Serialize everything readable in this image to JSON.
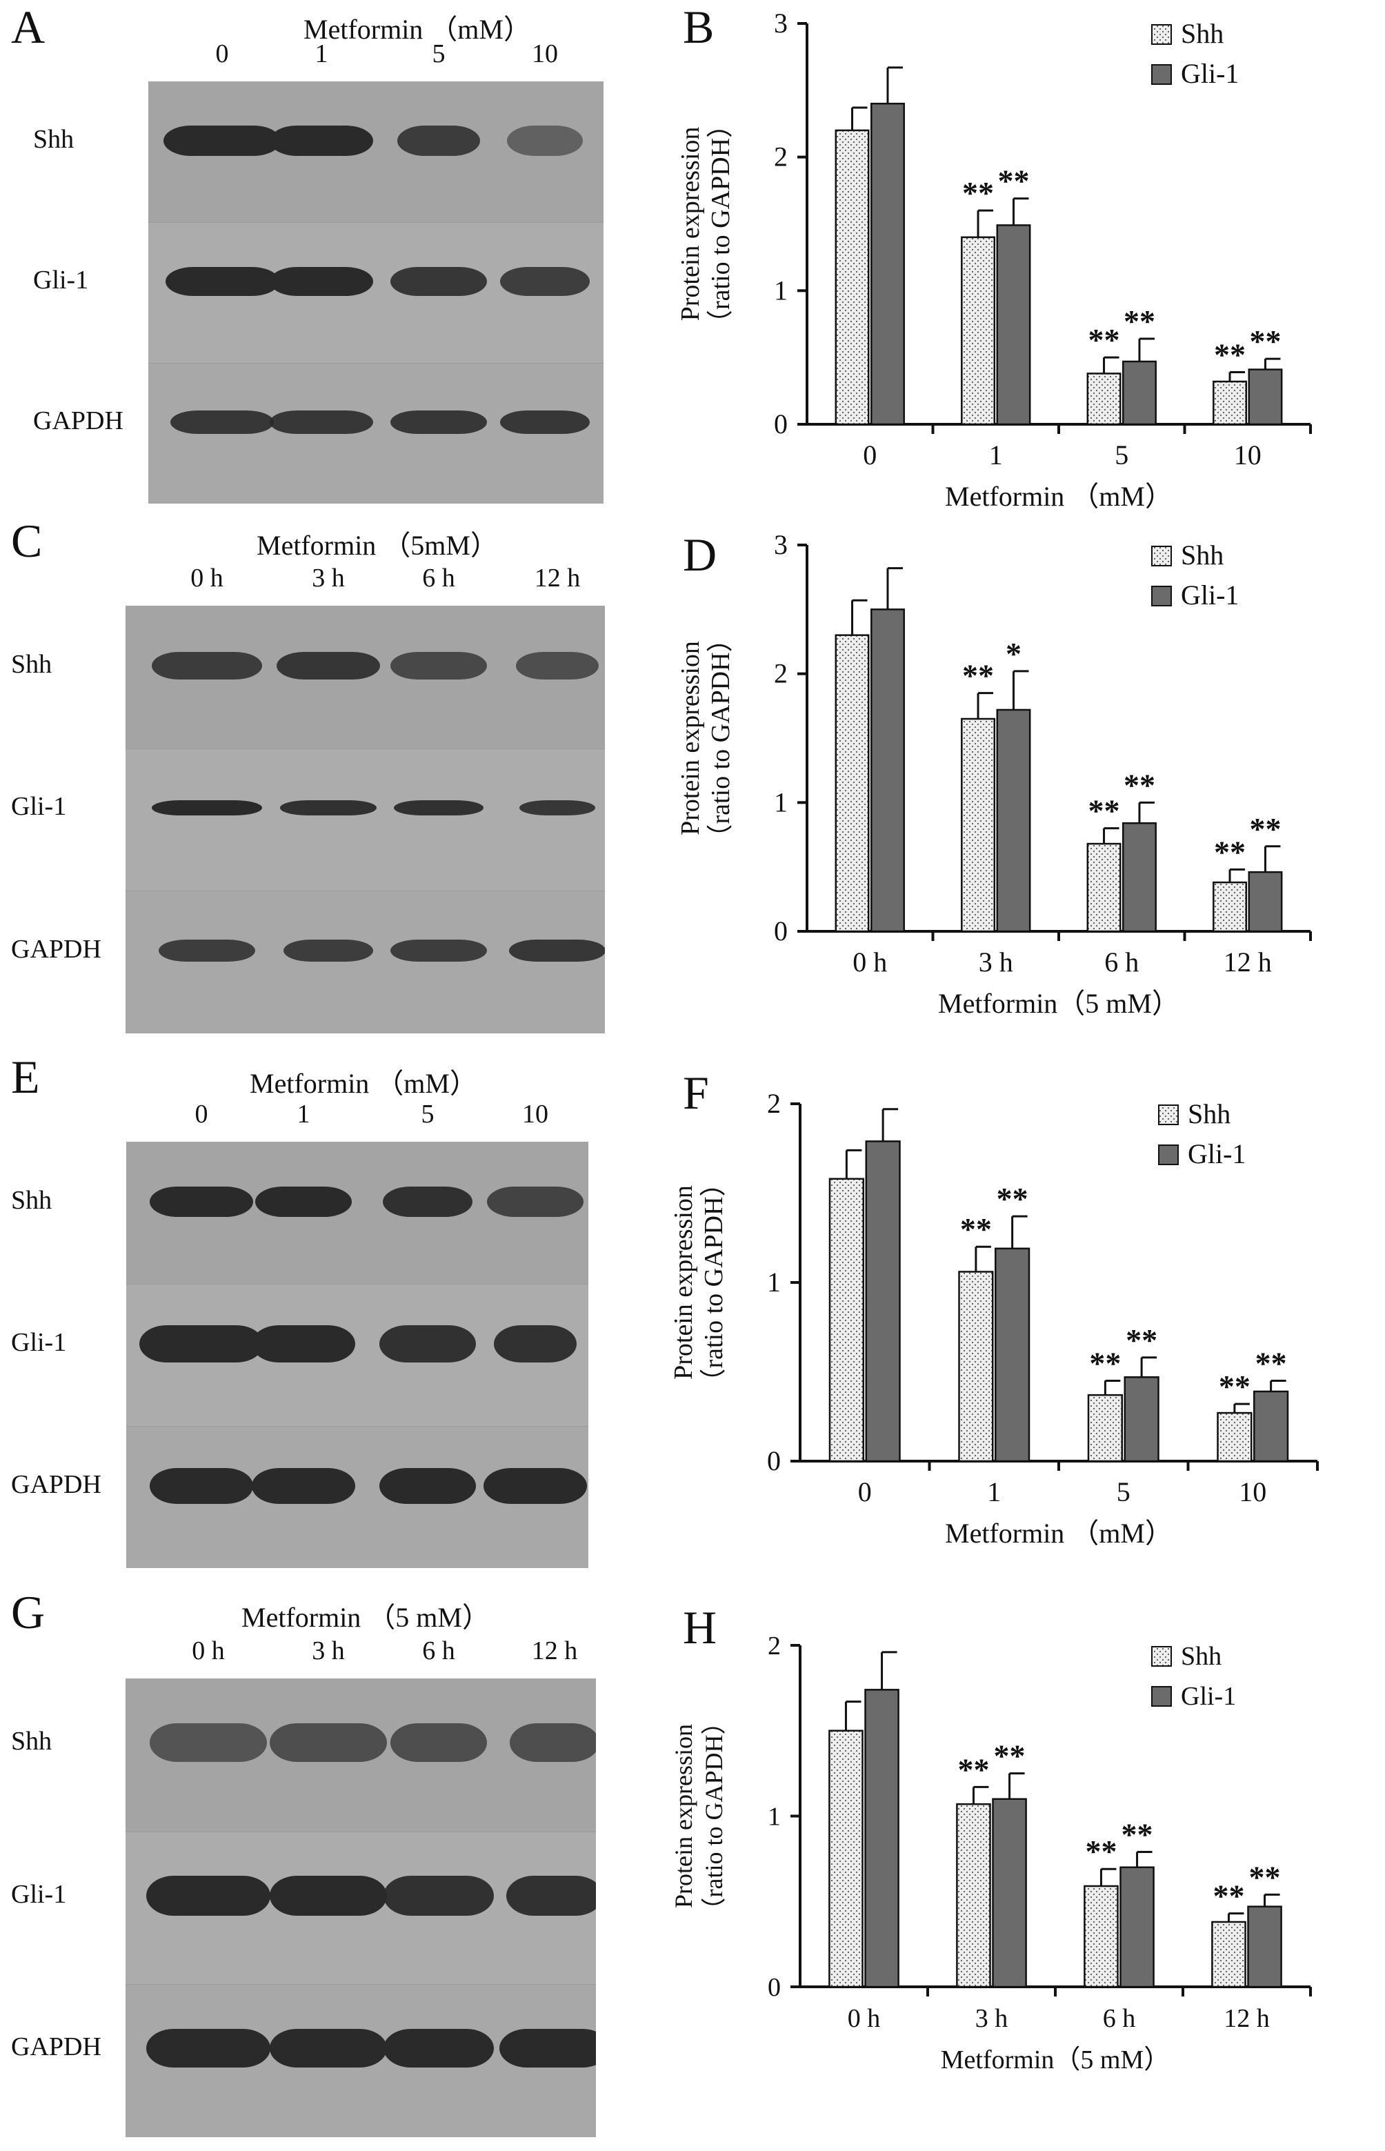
{
  "blots": [
    {
      "letter": "A",
      "title": "Metformin （mM）",
      "lanes": [
        "0",
        "1",
        "5",
        "10"
      ],
      "rows": [
        "Shh",
        "Gli-1",
        "GAPDH"
      ]
    },
    {
      "letter": "C",
      "title": "Metformin （5mM）",
      "lanes": [
        "0 h",
        "3 h",
        "6 h",
        "12 h"
      ],
      "rows": [
        "Shh",
        "Gli-1",
        "GAPDH"
      ]
    },
    {
      "letter": "E",
      "title": "Metformin （mM）",
      "lanes": [
        "0",
        "1",
        "5",
        "10"
      ],
      "rows": [
        "Shh",
        "Gli-1",
        "GAPDH"
      ]
    },
    {
      "letter": "G",
      "title": "Metformin （5 mM）",
      "lanes": [
        "0 h",
        "3 h",
        "6 h",
        "12 h"
      ],
      "rows": [
        "Shh",
        "Gli-1",
        "GAPDH"
      ]
    }
  ],
  "colors": {
    "shh_fill": "#eeeeee",
    "gli_fill": "#6b6b6b",
    "blot_bg": "#a9a9a9",
    "band": "#2a2a2a"
  },
  "chart_data": [
    {
      "letter": "B",
      "type": "bar",
      "categories": [
        "0",
        "1",
        "5",
        "10"
      ],
      "xlabel": "Metformin （mM）",
      "ylabel": [
        "Protein expression",
        "（ratio to GAPDH）"
      ],
      "ylim": [
        0,
        3
      ],
      "yticks": [
        "0",
        "1",
        "2",
        "3"
      ],
      "legend": "top-right",
      "series": [
        {
          "name": "Shh",
          "values": [
            2.2,
            1.4,
            0.38,
            0.32
          ],
          "errors": [
            0.17,
            0.2,
            0.12,
            0.07
          ],
          "marks": [
            "",
            "**",
            "**",
            "**"
          ]
        },
        {
          "name": "Gli-1",
          "values": [
            2.4,
            1.49,
            0.47,
            0.41
          ],
          "errors": [
            0.27,
            0.2,
            0.17,
            0.08
          ],
          "marks": [
            "",
            "**",
            "**",
            "**"
          ]
        }
      ]
    },
    {
      "letter": "D",
      "type": "bar",
      "categories": [
        "0 h",
        "3 h",
        "6 h",
        "12 h"
      ],
      "xlabel": "Metformin（5 mM）",
      "ylabel": [
        "Protein expression",
        "（ratio to GAPDH）"
      ],
      "ylim": [
        0,
        3
      ],
      "yticks": [
        "0",
        "1",
        "2",
        "3"
      ],
      "legend": "top-right",
      "series": [
        {
          "name": "Shh",
          "values": [
            2.3,
            1.65,
            0.68,
            0.38
          ],
          "errors": [
            0.27,
            0.2,
            0.12,
            0.1
          ],
          "marks": [
            "",
            "**",
            "**",
            "**"
          ]
        },
        {
          "name": "Gli-1",
          "values": [
            2.5,
            1.72,
            0.84,
            0.46
          ],
          "errors": [
            0.32,
            0.3,
            0.16,
            0.2
          ],
          "marks": [
            "",
            "*",
            "**",
            "**"
          ]
        }
      ]
    },
    {
      "letter": "F",
      "type": "bar",
      "categories": [
        "0",
        "1",
        "5",
        "10"
      ],
      "xlabel": "Metformin （mM）",
      "ylabel": [
        "Protein expression",
        "（ratio to GAPDH）"
      ],
      "ylim": [
        0,
        2
      ],
      "yticks": [
        "0",
        "1",
        "2"
      ],
      "legend": "top-right",
      "series": [
        {
          "name": "Shh",
          "values": [
            1.58,
            1.06,
            0.37,
            0.27
          ],
          "errors": [
            0.16,
            0.14,
            0.08,
            0.05
          ],
          "marks": [
            "",
            "**",
            "**",
            "**"
          ]
        },
        {
          "name": "Gli-1",
          "values": [
            1.79,
            1.19,
            0.47,
            0.39
          ],
          "errors": [
            0.18,
            0.18,
            0.11,
            0.06
          ],
          "marks": [
            "",
            "**",
            "**",
            "**"
          ]
        }
      ]
    },
    {
      "letter": "H",
      "type": "bar",
      "categories": [
        "0 h",
        "3 h",
        "6 h",
        "12 h"
      ],
      "xlabel": "Metformin（5 mM）",
      "ylabel": [
        "Protein expression",
        "（ratio to GAPDH）"
      ],
      "ylim": [
        0,
        2
      ],
      "yticks": [
        "0",
        "1",
        "2"
      ],
      "legend": "top-right",
      "series": [
        {
          "name": "Shh",
          "values": [
            1.5,
            1.07,
            0.59,
            0.38
          ],
          "errors": [
            0.17,
            0.1,
            0.1,
            0.05
          ],
          "marks": [
            "",
            "**",
            "**",
            "**"
          ]
        },
        {
          "name": "Gli-1",
          "values": [
            1.74,
            1.1,
            0.7,
            0.47
          ],
          "errors": [
            0.22,
            0.15,
            0.09,
            0.07
          ],
          "marks": [
            "",
            "**",
            "**",
            "**"
          ]
        }
      ]
    }
  ]
}
